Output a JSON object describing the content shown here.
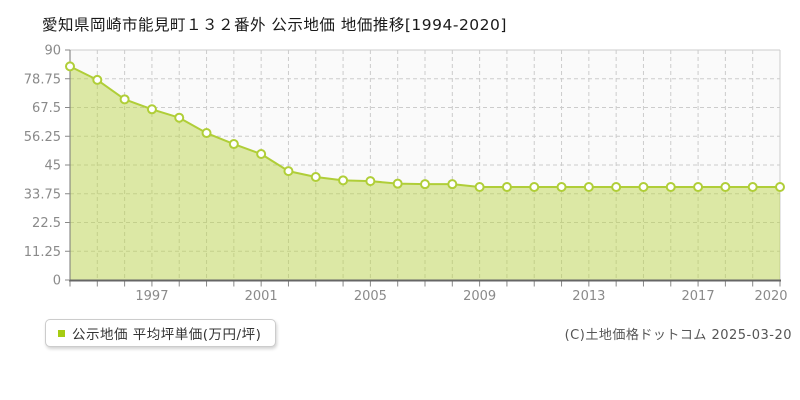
{
  "chart_data": {
    "type": "area",
    "title": "愛知県岡崎市能見町１３２番外 公示地価 地価推移[1994-2020]",
    "series_name": "公示地価 平均坪単価(万円/坪)",
    "x": [
      1994,
      1995,
      1996,
      1997,
      1998,
      1999,
      2000,
      2001,
      2002,
      2003,
      2004,
      2005,
      2006,
      2007,
      2008,
      2009,
      2010,
      2011,
      2012,
      2013,
      2014,
      2015,
      2016,
      2017,
      2018,
      2019,
      2020
    ],
    "values": [
      83.6,
      78.3,
      70.7,
      66.8,
      63.5,
      57.5,
      53.2,
      49.3,
      42.6,
      40.3,
      39.0,
      38.7,
      37.7,
      37.5,
      37.5,
      36.4,
      36.4,
      36.4,
      36.4,
      36.4,
      36.4,
      36.4,
      36.4,
      36.4,
      36.4,
      36.4,
      36.4
    ],
    "ylim": [
      0,
      90
    ],
    "yticks": [
      0,
      11.25,
      22.5,
      33.75,
      45,
      56.25,
      67.5,
      78.75,
      90
    ],
    "ytick_labels": [
      "0",
      "11.25",
      "22.5",
      "33.75",
      "45",
      "56.25",
      "67.5",
      "78.75",
      "90"
    ],
    "xtick_label_years": [
      1997,
      2001,
      2005,
      2009,
      2013,
      2017,
      2020
    ],
    "grid": "dashed",
    "legend_position": "bottom-left",
    "legend": {
      "label": "公示地価 平均坪単価(万円/坪)"
    },
    "footer": {
      "copyright": "(C)土地価格ドットコム 2025-03-20"
    },
    "colors": {
      "line": "#b0ce38",
      "fill": "rgba(183,211,62,0.45)",
      "marker_fill": "#ffffff",
      "marker_stroke": "#b0ce38",
      "legend_swatch": "#a6cc12",
      "grid": "#cccccc",
      "border": "#cccccc",
      "axis": "#777777",
      "tick": "#888888",
      "tick_label": "#8a8a8a",
      "plot_bg": "#fafafa"
    }
  }
}
